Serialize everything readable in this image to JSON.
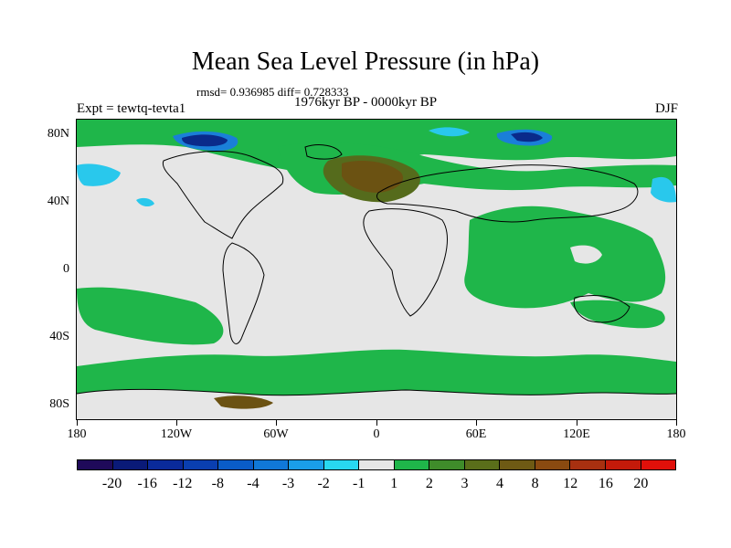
{
  "title": "Mean Sea Level Pressure (in hPa)",
  "stats": "rmsd= 0.936985 diff= 0.728333",
  "experiment_label": "Expt = tewtq-tevta1",
  "period_label": "1976kyr BP - 0000kyr BP",
  "season_label": "DJF",
  "lat_labels": [
    "80N",
    "40N",
    "0",
    "40S",
    "80S"
  ],
  "lon_labels": [
    "180",
    "120W",
    "60W",
    "0",
    "60E",
    "120E",
    "180"
  ],
  "colorbar": {
    "colors": [
      "#1f0a5a",
      "#0a1a78",
      "#0a2a9a",
      "#0a3fb0",
      "#0a5cc8",
      "#1078d8",
      "#1a9ee8",
      "#28d8f0",
      "#e6e6e6",
      "#1fb64a",
      "#3f8c2a",
      "#5a6e1a",
      "#6e5a14",
      "#8a4a10",
      "#a83010",
      "#c41a0a",
      "#e0100a"
    ],
    "labels": [
      "-20",
      "-16",
      "-12",
      "-8",
      "-4",
      "-3",
      "-2",
      "-1",
      "1",
      "2",
      "3",
      "4",
      "8",
      "12",
      "16",
      "20"
    ]
  },
  "field_colors": {
    "neutral": "#e6e6e6",
    "green": "#1fb64a",
    "olive": "#556b1c",
    "brown": "#6b5212",
    "light_blue": "#29c8ec",
    "mid_blue": "#1a7fd8",
    "dark_blue": "#0a2a8a"
  }
}
